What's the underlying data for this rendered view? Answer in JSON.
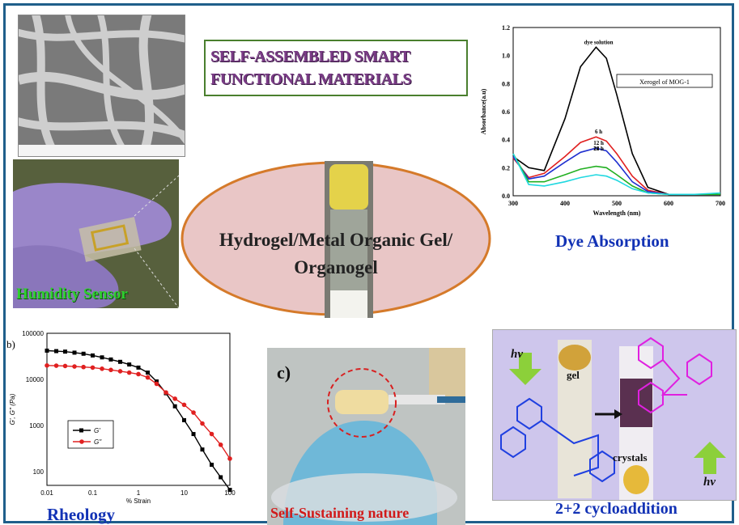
{
  "title": {
    "line1": "SELF-ASSEMBLED SMART",
    "line2": "FUNCTIONAL MATERIALS"
  },
  "center": {
    "line1": "Hydrogel/Metal Organic Gel/",
    "line2": "Organogel"
  },
  "captions": {
    "humidity": "Humidity Sensor",
    "dye": "Dye Absorption",
    "rheology": "Rheology",
    "self_sustaining": "Self-Sustaining nature",
    "cyclo": "2+2 cycloaddition"
  },
  "photo_labels": {
    "panel_c": "c)",
    "gel": "gel",
    "crystals": "crystals",
    "hv_top": "hv",
    "hv_bottom": "hv"
  },
  "rheology_panel_label": "b)",
  "colors": {
    "frame": "#1f5f8b",
    "title_text": "#7a3b86",
    "title_border": "#4a7f2e",
    "oval_fill": "#e9c6c6",
    "oval_border": "#d57a2a"
  },
  "chart_data": [
    {
      "type": "line",
      "legend_label": "Xerogel of MOG-1",
      "xlabel": "Wavelength (nm)",
      "ylabel": "Absorbance(a.u)",
      "xlim": [
        300,
        700
      ],
      "ylim": [
        0.0,
        1.2
      ],
      "xticks": [
        "300",
        "400",
        "500",
        "600",
        "700"
      ],
      "yticks": [
        "0.0",
        "0.2",
        "0.4",
        "0.6",
        "0.8",
        "1.0",
        "1.2"
      ],
      "x": [
        300,
        330,
        360,
        400,
        430,
        460,
        480,
        500,
        530,
        560,
        600,
        650,
        700
      ],
      "series": [
        {
          "name": "dye solution",
          "color": "#000000",
          "values": [
            0.28,
            0.2,
            0.18,
            0.55,
            0.92,
            1.06,
            0.98,
            0.72,
            0.3,
            0.06,
            0.01,
            0.01,
            0.01
          ]
        },
        {
          "name": "6 h",
          "color": "#e02020",
          "values": [
            0.27,
            0.13,
            0.16,
            0.28,
            0.38,
            0.42,
            0.39,
            0.3,
            0.14,
            0.04,
            0.01,
            0.01,
            0.01
          ]
        },
        {
          "name": "12 h",
          "color": "#2030d0",
          "values": [
            0.28,
            0.12,
            0.14,
            0.24,
            0.31,
            0.34,
            0.32,
            0.24,
            0.1,
            0.03,
            0.01,
            0.01,
            0.01
          ]
        },
        {
          "name": "18 h",
          "color": "#22b022",
          "values": [
            0.3,
            0.1,
            0.1,
            0.15,
            0.19,
            0.21,
            0.2,
            0.15,
            0.07,
            0.02,
            0.01,
            0.01,
            0.01
          ]
        },
        {
          "name": "24 h",
          "color": "#20d8e0",
          "values": [
            0.3,
            0.08,
            0.07,
            0.1,
            0.13,
            0.15,
            0.14,
            0.11,
            0.05,
            0.02,
            0.01,
            0.01,
            0.02
          ]
        }
      ]
    },
    {
      "type": "line",
      "xlabel": "% Strain",
      "ylabel": "G', G'' (Pa)",
      "log_x": true,
      "log_y": true,
      "xlim": [
        0.01,
        100
      ],
      "ylim": [
        50,
        100000
      ],
      "xticks": [
        "0.01",
        "0.1",
        "1",
        "10",
        "100"
      ],
      "yticks": [
        "100",
        "1000",
        "10000",
        "100000"
      ],
      "legend_position": "left",
      "x": [
        0.01,
        0.016,
        0.025,
        0.04,
        0.063,
        0.1,
        0.16,
        0.25,
        0.4,
        0.63,
        1,
        1.6,
        2.5,
        4,
        6.3,
        10,
        16,
        25,
        40,
        63,
        100
      ],
      "series": [
        {
          "name": "G'",
          "color": "#000000",
          "marker": "square",
          "values": [
            42000,
            41000,
            40000,
            38000,
            36000,
            33000,
            30000,
            27000,
            24000,
            21000,
            18000,
            14000,
            9000,
            5000,
            2600,
            1300,
            650,
            300,
            140,
            75,
            40
          ]
        },
        {
          "name": "G''",
          "color": "#e02020",
          "marker": "circle",
          "values": [
            20000,
            19800,
            19500,
            19000,
            18500,
            18000,
            17000,
            16000,
            15000,
            14000,
            13000,
            11000,
            8000,
            5200,
            3800,
            2800,
            1900,
            1100,
            650,
            380,
            190
          ]
        }
      ]
    }
  ]
}
